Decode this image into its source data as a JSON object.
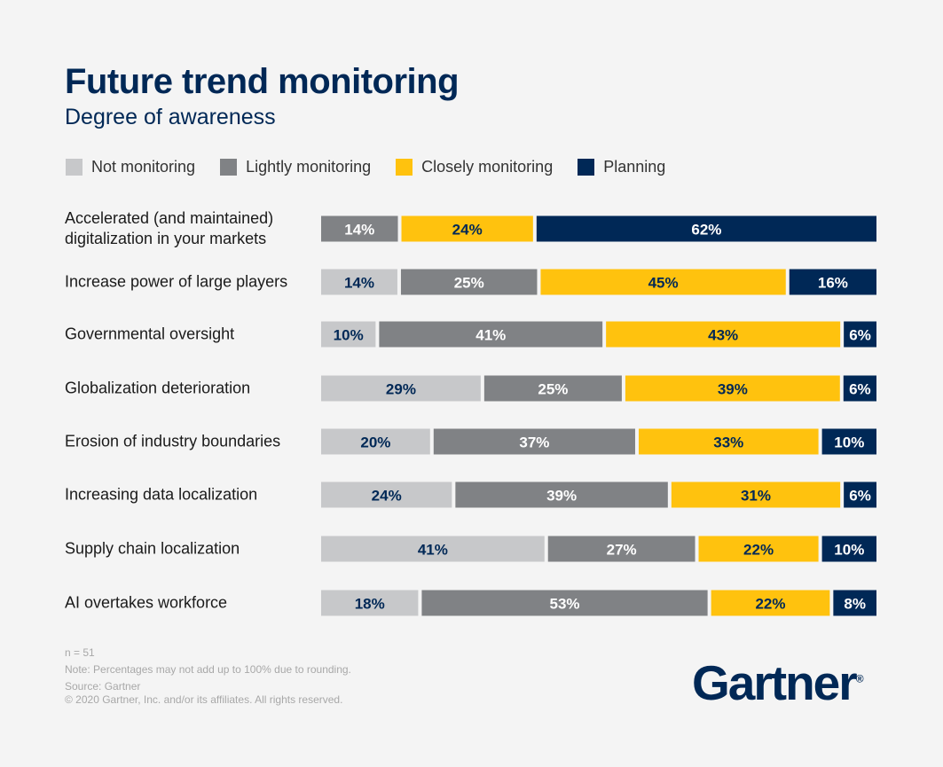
{
  "chart_data": {
    "type": "bar",
    "orientation": "horizontal",
    "stacked": true,
    "title": "Future trend monitoring",
    "subtitle": "Degree of awareness",
    "legend_position": "top",
    "categories": [
      "Accelerated (and maintained) digitalization in your markets",
      "Increase power of large players",
      "Governmental oversight",
      "Globalization deterioration",
      "Erosion of industry boundaries",
      "Increasing data localization",
      "Supply chain localization",
      "AI overtakes workforce"
    ],
    "series": [
      {
        "name": "Not monitoring",
        "color": "#c7c8ca",
        "text_color": "#002856",
        "values": [
          0,
          14,
          10,
          29,
          20,
          24,
          41,
          18
        ]
      },
      {
        "name": "Lightly monitoring",
        "color": "#808285",
        "text_color": "#ffffff",
        "values": [
          14,
          25,
          41,
          25,
          37,
          39,
          27,
          53
        ]
      },
      {
        "name": "Closely monitoring",
        "color": "#ffc20e",
        "text_color": "#002856",
        "values": [
          24,
          45,
          43,
          39,
          33,
          31,
          22,
          22
        ]
      },
      {
        "name": "Planning",
        "color": "#002856",
        "text_color": "#ffffff",
        "values": [
          62,
          16,
          6,
          6,
          10,
          6,
          10,
          8
        ]
      }
    ]
  },
  "footer": {
    "n": "n = 51",
    "note": "Note: Percentages may not add up to 100% due to rounding.",
    "source": "Source: Gartner",
    "copyright": "© 2020 Gartner, Inc. and/or its affiliates. All rights reserved."
  },
  "logo": "Gartner"
}
